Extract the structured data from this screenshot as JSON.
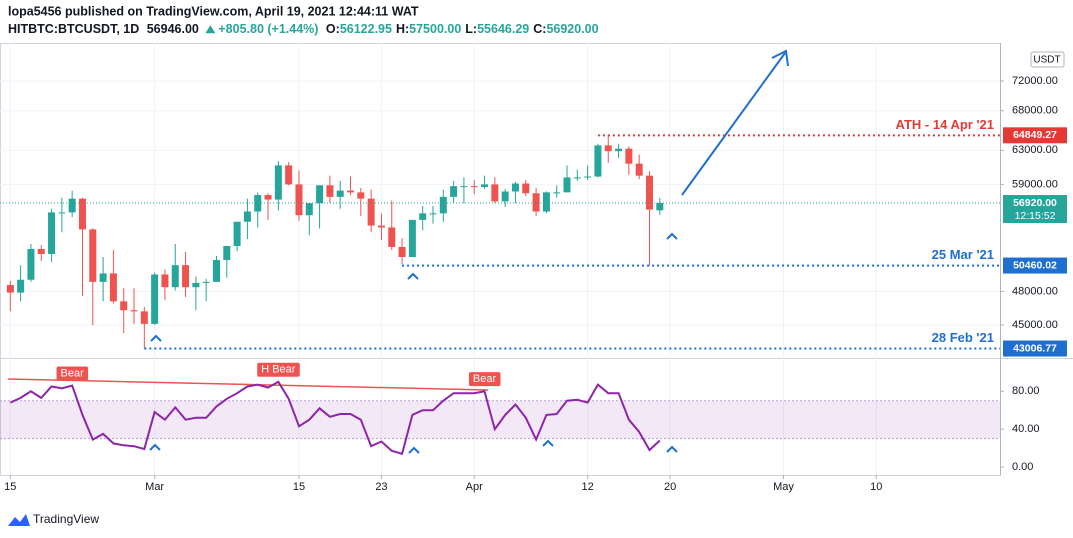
{
  "header": {
    "line1": "lopa5456 published on TradingView.com, April 19, 2021 12:44:11 WAT",
    "symbol": "HITBTC:BTCUSDT, 1D",
    "last": "56946.00",
    "change": "+805.80 (+1.44%)",
    "ohlc": [
      {
        "k": "O:",
        "v": "56122.95"
      },
      {
        "k": "H:",
        "v": "57500.00"
      },
      {
        "k": "L:",
        "v": "55646.29"
      },
      {
        "k": "C:",
        "v": "56920.00"
      }
    ]
  },
  "chart_data": {
    "type": "candlestick",
    "currency": "USDT",
    "log": true,
    "up_color": "#26a69a",
    "down_color": "#ef5350",
    "xlim": [
      "2021-02-14",
      "2021-05-22"
    ],
    "xticks": [
      {
        "value": "2021-02-15",
        "label": "15"
      },
      {
        "value": "2021-03-01",
        "label": "Mar"
      },
      {
        "value": "2021-03-15",
        "label": "15"
      },
      {
        "value": "2021-03-23",
        "label": "23"
      },
      {
        "value": "2021-04-01",
        "label": "Apr"
      },
      {
        "value": "2021-04-12",
        "label": "12"
      },
      {
        "value": "2021-04-20",
        "label": "20"
      },
      {
        "value": "2021-05-01",
        "label": "May"
      },
      {
        "value": "2021-05-10",
        "label": "10"
      }
    ],
    "ylim": [
      42230,
      77470
    ],
    "yticks": [
      {
        "value": 45000,
        "label": "45000.00"
      },
      {
        "value": 48000,
        "label": "48000.00"
      },
      {
        "value": 59000,
        "label": "59000.00"
      },
      {
        "value": 63000,
        "label": "63000.00"
      },
      {
        "value": 68000,
        "label": "68000.00"
      },
      {
        "value": 72000,
        "label": "72000.00"
      }
    ],
    "x": [
      "2021-02-15",
      "2021-02-16",
      "2021-02-17",
      "2021-02-18",
      "2021-02-19",
      "2021-02-20",
      "2021-02-21",
      "2021-02-22",
      "2021-02-23",
      "2021-02-24",
      "2021-02-25",
      "2021-02-26",
      "2021-02-27",
      "2021-02-28",
      "2021-03-01",
      "2021-03-02",
      "2021-03-03",
      "2021-03-04",
      "2021-03-05",
      "2021-03-06",
      "2021-03-07",
      "2021-03-08",
      "2021-03-09",
      "2021-03-10",
      "2021-03-11",
      "2021-03-12",
      "2021-03-13",
      "2021-03-14",
      "2021-03-15",
      "2021-03-16",
      "2021-03-17",
      "2021-03-18",
      "2021-03-19",
      "2021-03-20",
      "2021-03-21",
      "2021-03-22",
      "2021-03-23",
      "2021-03-24",
      "2021-03-25",
      "2021-03-26",
      "2021-03-27",
      "2021-03-28",
      "2021-03-29",
      "2021-03-30",
      "2021-03-31",
      "2021-04-01",
      "2021-04-02",
      "2021-04-03",
      "2021-04-04",
      "2021-04-05",
      "2021-04-06",
      "2021-04-07",
      "2021-04-08",
      "2021-04-09",
      "2021-04-10",
      "2021-04-11",
      "2021-04-12",
      "2021-04-13",
      "2021-04-14",
      "2021-04-15",
      "2021-04-16",
      "2021-04-17",
      "2021-04-18",
      "2021-04-19"
    ],
    "open": [
      48600,
      47900,
      49100,
      52100,
      51600,
      55900,
      55900,
      57400,
      54100,
      48900,
      49700,
      47100,
      46300,
      46200,
      45100,
      49600,
      48400,
      50500,
      48400,
      48800,
      48900,
      51000,
      52400,
      54900,
      56000,
      57800,
      57300,
      61200,
      59000,
      55600,
      56900,
      58900,
      57600,
      58300,
      58100,
      57400,
      54500,
      54300,
      52300,
      51300,
      55100,
      55800,
      55800,
      57600,
      58800,
      58800,
      58700,
      59000,
      57100,
      58200,
      59100,
      58000,
      56000,
      58100,
      58100,
      59800,
      59800,
      59900,
      63600,
      62900,
      63200,
      61400,
      60000,
      56122.95
    ],
    "high": [
      49000,
      50500,
      52600,
      52500,
      56300,
      57500,
      58300,
      57500,
      54200,
      51300,
      52000,
      48300,
      48300,
      46600,
      49800,
      50100,
      52600,
      51800,
      49400,
      49200,
      51400,
      52400,
      54900,
      57400,
      58100,
      58000,
      61700,
      61600,
      60600,
      56900,
      58900,
      60000,
      59400,
      59900,
      58600,
      58400,
      55800,
      57200,
      53200,
      55100,
      56600,
      56600,
      58400,
      59400,
      59800,
      59500,
      60000,
      59800,
      58500,
      59300,
      59500,
      58600,
      58200,
      58900,
      61200,
      60700,
      61200,
      63800,
      64849.27,
      63800,
      63500,
      62500,
      60500,
      57500
    ],
    "low": [
      46200,
      47100,
      48900,
      50900,
      50800,
      53800,
      55400,
      47600,
      45000,
      47100,
      46900,
      44300,
      45100,
      43006.77,
      45000,
      47200,
      48100,
      47500,
      46300,
      47100,
      48900,
      49300,
      51900,
      53100,
      54300,
      55100,
      56100,
      58900,
      55000,
      53500,
      54200,
      56900,
      56300,
      57800,
      55500,
      53800,
      53000,
      52000,
      50600,
      51300,
      54000,
      54700,
      54900,
      57000,
      56900,
      57900,
      58500,
      56900,
      56500,
      56900,
      57700,
      55500,
      55800,
      57500,
      58100,
      59400,
      59500,
      59800,
      61500,
      62100,
      60100,
      59600,
      50460.02,
      55646.29
    ],
    "close": [
      47900,
      49100,
      52100,
      51600,
      55900,
      55900,
      57400,
      54100,
      48900,
      49700,
      47100,
      46300,
      46200,
      45100,
      49600,
      48400,
      50500,
      48400,
      48800,
      48900,
      51000,
      52400,
      54900,
      56000,
      57800,
      57300,
      61200,
      59000,
      55600,
      56900,
      58900,
      57600,
      58300,
      58100,
      57400,
      54500,
      54300,
      52300,
      51300,
      55100,
      55800,
      55800,
      57600,
      58800,
      58800,
      58700,
      59000,
      57100,
      58200,
      59100,
      58000,
      56000,
      58100,
      58100,
      59800,
      59800,
      59900,
      63600,
      62900,
      63200,
      61400,
      60000,
      56200,
      56920
    ],
    "levels": [
      {
        "value": 64849.27,
        "note": "ATH - 14 Apr '21",
        "from": "2021-04-13",
        "color": "#e53935"
      },
      {
        "value": 50460.02,
        "note": "25 Mar '21",
        "from": "2021-03-25",
        "color": "#1e6fd0"
      },
      {
        "value": 43006.77,
        "note": "28 Feb '21",
        "from": "2021-02-28",
        "color": "#1e6fd0"
      }
    ],
    "last_price": {
      "value": 56920,
      "label": "56920.00",
      "countdown": "12:15:52",
      "color": "#26a69a"
    },
    "rsi": {
      "color": "#8e24aa",
      "ylim": [
        -8.4,
        113
      ],
      "yticks": [
        {
          "value": 0,
          "label": "0.00"
        },
        {
          "value": 40,
          "label": "40.00"
        },
        {
          "value": 80,
          "label": "80.00"
        }
      ],
      "band": [
        30,
        70
      ],
      "values": [
        68,
        73,
        80,
        73,
        85,
        83,
        86,
        55,
        29,
        35,
        25,
        23,
        22,
        19,
        58,
        50,
        63,
        50,
        52,
        52,
        64,
        72,
        78,
        85,
        87,
        84,
        90,
        72,
        43,
        50,
        62,
        53,
        56,
        56,
        50,
        22,
        27,
        17,
        14,
        55,
        60,
        60,
        70,
        78,
        78,
        78,
        80,
        40,
        55,
        66,
        52,
        29,
        55,
        56,
        70,
        71,
        68,
        87,
        78,
        78,
        50,
        37,
        18,
        28
      ],
      "signals": [
        {
          "label": "Bear",
          "x": "2021-02-21"
        },
        {
          "label": "H Bear",
          "x": "2021-03-13"
        },
        {
          "label": "Bear",
          "x": "2021-04-02"
        }
      ]
    }
  },
  "footer": {
    "brand": "TradingView"
  }
}
